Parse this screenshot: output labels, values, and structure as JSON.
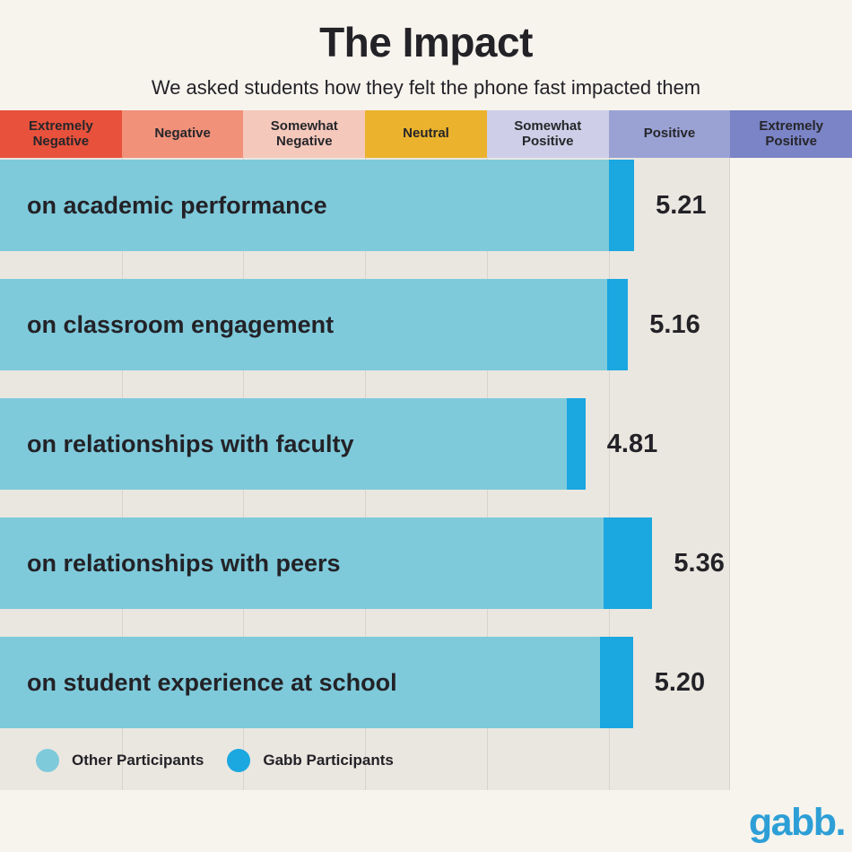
{
  "header": {
    "title": "The Impact",
    "subtitle": "We asked students how they felt the phone fast impacted them"
  },
  "chart_data": {
    "type": "bar",
    "orientation": "horizontal",
    "title": "The Impact",
    "subtitle": "We asked students how they felt the phone fast impacted them",
    "xlim": [
      0,
      7
    ],
    "grid": true,
    "x_bands": {
      "labels": [
        "Extremely Negative",
        "Negative",
        "Somewhat Negative",
        "Neutral",
        "Somewhat Positive",
        "Positive",
        "Extremely Positive"
      ],
      "colors": [
        "#e8513b",
        "#f1917a",
        "#f4c8bb",
        "#ebb32d",
        "#cecee8",
        "#9aa2d4",
        "#7a84c6"
      ]
    },
    "categories": [
      "on academic performance",
      "on classroom engagement",
      "on relationships with faculty",
      "on relationships with peers",
      "on student experience at school"
    ],
    "series": [
      {
        "name": "Other Participants",
        "color": "#7ecadb",
        "values": [
          5.0,
          4.99,
          4.66,
          4.96,
          4.93
        ]
      },
      {
        "name": "Gabb Participants",
        "color": "#1ba7e0",
        "values": [
          5.21,
          5.16,
          4.81,
          5.36,
          5.2
        ]
      }
    ],
    "value_labels": [
      "5.21",
      "5.16",
      "4.81",
      "5.36",
      "5.20"
    ],
    "legend_position": "bottom-left"
  },
  "legend": {
    "items": [
      {
        "label": "Other Participants",
        "color": "#7ecadb"
      },
      {
        "label": "Gabb Participants",
        "color": "#1ba7e0"
      }
    ]
  },
  "footer": {
    "logo_text": "gabb."
  },
  "colors": {
    "page_bg": "#f7f4ee",
    "plot_bg": "#eae7e0",
    "gridline": "#d8d4cd",
    "text": "#232227",
    "logo": "#2d9fd6"
  }
}
